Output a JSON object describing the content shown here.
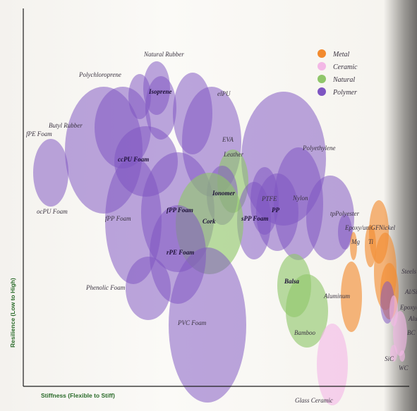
{
  "chart_data": {
    "type": "bubble",
    "title": "",
    "xlabel": "Stiffness (Flexible to Stiff)",
    "ylabel": "Resilience (Low to High)",
    "grid": false,
    "legend_position": "top-right",
    "legend": [
      {
        "name": "Metal",
        "color": "#f28a2e"
      },
      {
        "name": "Ceramic",
        "color": "#f3b8e6"
      },
      {
        "name": "Natural",
        "color": "#8fc66a"
      },
      {
        "name": "Polymer",
        "color": "#7e55c2"
      }
    ],
    "materials": [
      {
        "label": "Polychloroprene",
        "class": "Polymer",
        "x": 4.6,
        "y": 9.2
      },
      {
        "label": "Natural Rubber",
        "class": "Polymer",
        "x": 5.4,
        "y": 9.5
      },
      {
        "label": "Isoprene",
        "class": "Polymer",
        "x": 5.6,
        "y": 8.8
      },
      {
        "label": "elPU",
        "class": "Polymer",
        "x": 7.1,
        "y": 8.6
      },
      {
        "label": "Butyl Rubber",
        "class": "Polymer",
        "x": 3.8,
        "y": 8.1
      },
      {
        "label": "EVA",
        "class": "Polymer",
        "x": 8.0,
        "y": 7.6
      },
      {
        "label": "fPE Foam",
        "class": "Polymer",
        "x": 2.9,
        "y": 7.3
      },
      {
        "label": "ocPU Foam",
        "class": "Polymer",
        "x": 0.4,
        "y": 6.5
      },
      {
        "label": "ccPU Foam",
        "class": "Polymer",
        "x": 4.9,
        "y": 6.9
      },
      {
        "label": "Polyethylene",
        "class": "Polymer",
        "x": 11.4,
        "y": 7.0
      },
      {
        "label": "Leather",
        "class": "Natural",
        "x": 9.0,
        "y": 6.2
      },
      {
        "label": "Ionomer",
        "class": "Polymer",
        "x": 8.5,
        "y": 5.7
      },
      {
        "label": "PTFE",
        "class": "Polymer",
        "x": 10.5,
        "y": 5.5
      },
      {
        "label": "Nylon",
        "class": "Polymer",
        "x": 12.1,
        "y": 5.4
      },
      {
        "label": "fPP Foam",
        "class": "Polymer",
        "x": 6.4,
        "y": 5.1
      },
      {
        "label": "PP",
        "class": "Polymer",
        "x": 11.1,
        "y": 5.1
      },
      {
        "label": "sPP Foam",
        "class": "Polymer",
        "x": 10.0,
        "y": 4.8
      },
      {
        "label": "fPP Foam",
        "class": "Polymer",
        "x": 4.3,
        "y": 4.8
      },
      {
        "label": "Cork",
        "class": "Natural",
        "x": 7.9,
        "y": 4.7
      },
      {
        "label": "tpPolyester",
        "class": "Polymer",
        "x": 13.6,
        "y": 4.9
      },
      {
        "label": "Epoxy/uniGF",
        "class": "Polymer",
        "x": 14.3,
        "y": 4.4
      },
      {
        "label": "Nickel",
        "class": "Metal",
        "x": 15.9,
        "y": 4.4
      },
      {
        "label": "Mg",
        "class": "Metal",
        "x": 14.7,
        "y": 3.9
      },
      {
        "label": "Ti",
        "class": "Metal",
        "x": 15.5,
        "y": 3.9
      },
      {
        "label": "rPE Foam",
        "class": "Polymer",
        "x": 6.4,
        "y": 3.6
      },
      {
        "label": "Steels",
        "class": "Metal",
        "x": 16.2,
        "y": 3.0
      },
      {
        "label": "Phenolic Foam",
        "class": "Polymer",
        "x": 5.0,
        "y": 2.4
      },
      {
        "label": "Balsa",
        "class": "Natural",
        "x": 11.9,
        "y": 2.5
      },
      {
        "label": "Aluminum",
        "class": "Metal",
        "x": 14.6,
        "y": 2.1
      },
      {
        "label": "Al/SiC",
        "class": "Metal",
        "x": 16.4,
        "y": 2.3
      },
      {
        "label": "Epoxy/uniC",
        "class": "Polymer",
        "x": 16.3,
        "y": 1.9
      },
      {
        "label": "Alumina",
        "class": "Ceramic",
        "x": 16.6,
        "y": 1.6
      },
      {
        "label": "Bamboo",
        "class": "Natural",
        "x": 12.5,
        "y": 1.6
      },
      {
        "label": "PVC Foam",
        "class": "Polymer",
        "x": 7.8,
        "y": 1.1
      },
      {
        "label": "BC",
        "class": "Ceramic",
        "x": 16.9,
        "y": 0.8
      },
      {
        "label": "SiC",
        "class": "Ceramic",
        "x": 16.6,
        "y": 0.1
      },
      {
        "label": "WC",
        "class": "Ceramic",
        "x": 17.0,
        "y": 0.0
      },
      {
        "label": "Glass Ceramic",
        "class": "Ceramic",
        "x": 13.7,
        "y": -0.3
      }
    ]
  }
}
